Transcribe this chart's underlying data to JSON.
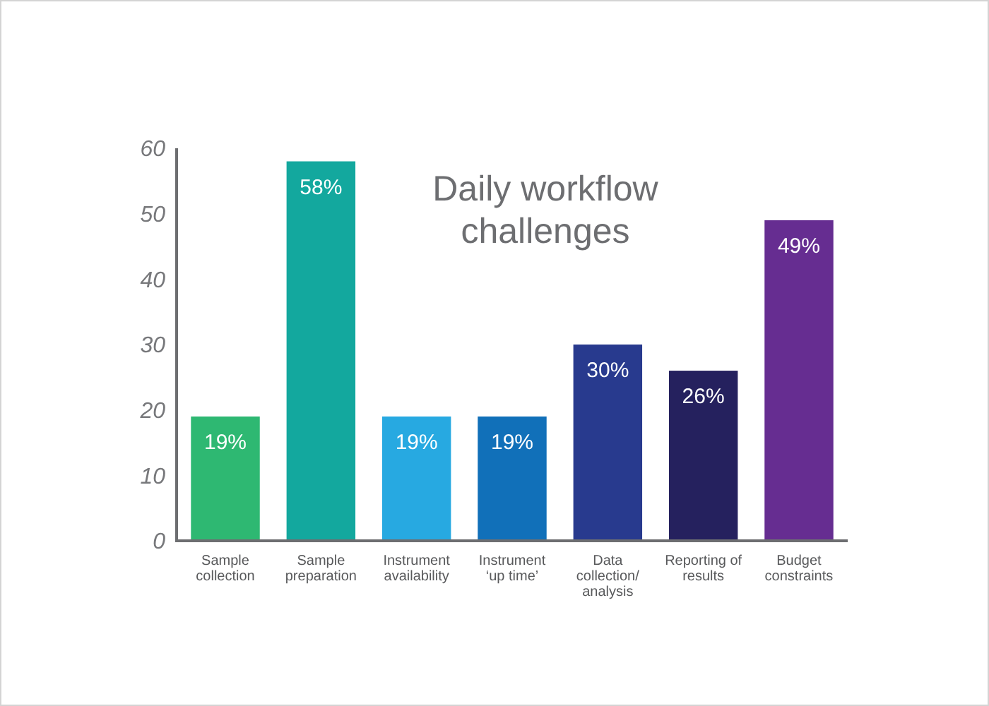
{
  "chart_data": {
    "type": "bar",
    "title": "Daily workflow challenges",
    "categories": [
      "Sample collection",
      "Sample preparation",
      "Instrument availability",
      "Instrument ‘up time’",
      "Data collection/ analysis",
      "Reporting of results",
      "Budget constraints"
    ],
    "values": [
      19,
      58,
      19,
      19,
      30,
      26,
      49
    ],
    "colors": [
      "#2eb872",
      "#13a89e",
      "#27a9e1",
      "#1170b9",
      "#283a8e",
      "#25215e",
      "#662d91"
    ],
    "value_labels": [
      "19%",
      "58%",
      "19%",
      "19%",
      "30%",
      "26%",
      "49%"
    ],
    "ylim": [
      0,
      60
    ],
    "yticks": [
      0,
      10,
      20,
      30,
      40,
      50,
      60
    ]
  }
}
